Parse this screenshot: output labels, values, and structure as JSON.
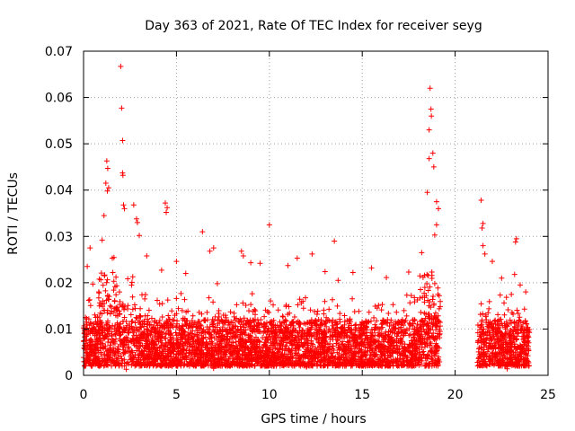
{
  "chart_data": {
    "type": "scatter",
    "title": "Day 363 of 2021, Rate Of TEC Index for receiver seyg",
    "xlabel": "GPS time / hours",
    "ylabel": "ROTI / TECUs",
    "xlim": [
      0,
      25
    ],
    "ylim": [
      0,
      0.07
    ],
    "x_ticks": [
      "0",
      "5",
      "10",
      "15",
      "20",
      "25"
    ],
    "y_ticks": [
      "0",
      "0.01",
      "0.02",
      "0.03",
      "0.04",
      "0.05",
      "0.06",
      "0.07"
    ],
    "grid": true,
    "legend": "none",
    "marker": "+",
    "color": "#ff0000",
    "data_gap_hours": [
      19.2,
      21.2
    ],
    "coverage_hours": [
      [
        0.0,
        19.2
      ],
      [
        21.2,
        24.0
      ]
    ],
    "baseline_band": {
      "low": 0.002,
      "high": 0.012
    },
    "points": [
      [
        2.0,
        0.0667
      ],
      [
        2.05,
        0.0577
      ],
      [
        2.1,
        0.0507
      ],
      [
        2.1,
        0.0437
      ],
      [
        2.12,
        0.0432
      ],
      [
        1.25,
        0.0463
      ],
      [
        1.3,
        0.0447
      ],
      [
        1.2,
        0.0415
      ],
      [
        1.35,
        0.0405
      ],
      [
        1.28,
        0.0398
      ],
      [
        2.15,
        0.0368
      ],
      [
        2.2,
        0.036
      ],
      [
        2.7,
        0.0368
      ],
      [
        2.85,
        0.0338
      ],
      [
        2.9,
        0.033
      ],
      [
        4.4,
        0.0372
      ],
      [
        4.5,
        0.0362
      ],
      [
        4.45,
        0.0352
      ],
      [
        6.4,
        0.031
      ],
      [
        10.0,
        0.0325
      ],
      [
        13.5,
        0.029
      ],
      [
        12.3,
        0.0262
      ],
      [
        7.0,
        0.0275
      ],
      [
        18.65,
        0.062
      ],
      [
        18.7,
        0.0575
      ],
      [
        18.72,
        0.056
      ],
      [
        18.6,
        0.053
      ],
      [
        18.8,
        0.048
      ],
      [
        18.85,
        0.045
      ],
      [
        18.6,
        0.0468
      ],
      [
        18.5,
        0.0395
      ],
      [
        19.0,
        0.0375
      ],
      [
        19.1,
        0.036
      ],
      [
        21.4,
        0.0378
      ],
      [
        21.5,
        0.0328
      ],
      [
        21.45,
        0.0318
      ],
      [
        21.5,
        0.028
      ],
      [
        21.6,
        0.0262
      ],
      [
        23.3,
        0.0295
      ],
      [
        23.25,
        0.0288
      ],
      [
        22.0,
        0.0246
      ],
      [
        23.2,
        0.0218
      ],
      [
        0.2,
        0.0235
      ],
      [
        0.35,
        0.0275
      ],
      [
        0.5,
        0.0197
      ],
      [
        1.0,
        0.0292
      ],
      [
        1.1,
        0.0345
      ],
      [
        3.0,
        0.0302
      ],
      [
        3.4,
        0.0258
      ],
      [
        4.2,
        0.0227
      ],
      [
        5.0,
        0.0246
      ],
      [
        5.5,
        0.022
      ],
      [
        6.8,
        0.0268
      ],
      [
        7.2,
        0.0198
      ],
      [
        8.5,
        0.0268
      ],
      [
        8.6,
        0.0258
      ],
      [
        9.0,
        0.0243
      ],
      [
        9.5,
        0.0242
      ],
      [
        11.0,
        0.0237
      ],
      [
        11.5,
        0.0253
      ],
      [
        13.0,
        0.0224
      ],
      [
        13.7,
        0.0205
      ],
      [
        14.5,
        0.0222
      ],
      [
        15.5,
        0.0232
      ],
      [
        16.3,
        0.0211
      ],
      [
        17.5,
        0.0223
      ],
      [
        18.2,
        0.0265
      ],
      [
        18.9,
        0.0303
      ],
      [
        19.0,
        0.0325
      ],
      [
        22.5,
        0.021
      ],
      [
        23.5,
        0.0195
      ],
      [
        23.8,
        0.018
      ],
      [
        7.0,
        0.0015
      ],
      [
        18.9,
        0.0025
      ],
      [
        2.3,
        0.0013
      ],
      [
        12.0,
        0.0018
      ],
      [
        22.8,
        0.0014
      ]
    ]
  }
}
